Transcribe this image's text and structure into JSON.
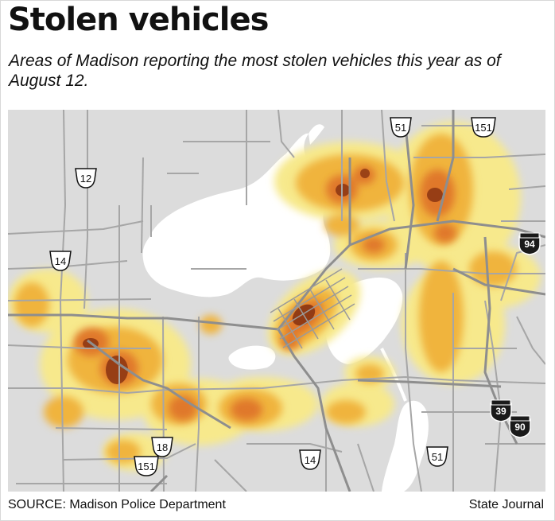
{
  "title": "Stolen vehicles",
  "subtitle": "Areas of Madison reporting the most stolen vehicles this year as of August 12.",
  "source": "SOURCE: Madison Police Department",
  "credit": "State Journal",
  "colors": {
    "land": "#dcdcdc",
    "water": "#ffffff",
    "roads": "#a6a6a6",
    "heat_low": "#f7e98c",
    "heat_mid": "#f0b43c",
    "heat_high": "#e0782a",
    "heat_core": "#8a3412"
  },
  "highway_markers": [
    {
      "id": "us-51-north",
      "type": "us-highway",
      "label": "51"
    },
    {
      "id": "us-151-north",
      "type": "us-highway",
      "label": "151"
    },
    {
      "id": "us-12",
      "type": "us-highway",
      "label": "12"
    },
    {
      "id": "us-14-west",
      "type": "us-highway",
      "label": "14"
    },
    {
      "id": "i-94",
      "type": "interstate",
      "label": "94"
    },
    {
      "id": "i-39",
      "type": "interstate",
      "label": "39"
    },
    {
      "id": "i-90",
      "type": "interstate",
      "label": "90"
    },
    {
      "id": "us-18",
      "type": "us-highway",
      "label": "18"
    },
    {
      "id": "us-151-south",
      "type": "us-highway",
      "label": "151"
    },
    {
      "id": "us-14-south",
      "type": "us-highway",
      "label": "14"
    },
    {
      "id": "us-51-south",
      "type": "us-highway",
      "label": "51"
    }
  ]
}
